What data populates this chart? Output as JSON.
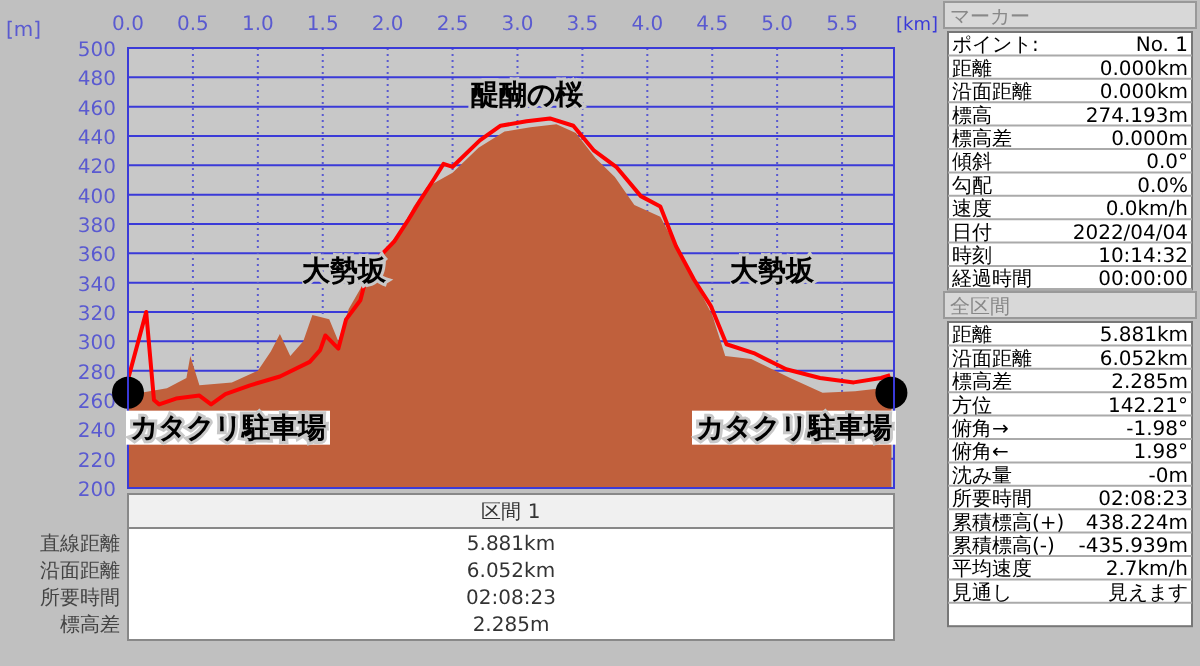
{
  "chart_data": {
    "type": "area",
    "xlabel": "[km]",
    "ylabel": "[m]",
    "xlim": [
      0,
      5.9
    ],
    "xticks": [
      {
        "value": 0,
        "label": "0.0"
      },
      0.5,
      {
        "value": 1,
        "label": "1.0"
      },
      1.5,
      {
        "value": 2,
        "label": "2.0"
      },
      2.5,
      {
        "value": 3,
        "label": "3.0"
      },
      3.5,
      {
        "value": 4,
        "label": "4.0"
      },
      4.5,
      {
        "value": 5,
        "label": "5.0"
      },
      5.5
    ],
    "ylim": [
      200,
      500
    ],
    "yticks": [
      200,
      220,
      240,
      260,
      280,
      300,
      320,
      340,
      360,
      380,
      400,
      420,
      440,
      460,
      480,
      500
    ],
    "grid": true,
    "series": [
      {
        "color": "#c0603c",
        "x": [
          0,
          0.1,
          0.3,
          0.45,
          0.48,
          0.55,
          0.8,
          1.0,
          1.1,
          1.17,
          1.25,
          1.35,
          1.42,
          1.55,
          1.62,
          1.7,
          1.85,
          2.0,
          2.1,
          2.2,
          2.3,
          2.4,
          2.5,
          2.7,
          2.9,
          3.1,
          3.3,
          3.45,
          3.6,
          3.75,
          3.9,
          4.1,
          4.25,
          4.4,
          4.5,
          4.6,
          4.8,
          5.1,
          5.35,
          5.6,
          5.8,
          5.88
        ],
        "values": [
          270,
          265,
          268,
          275,
          290,
          270,
          272,
          280,
          293,
          305,
          290,
          300,
          318,
          315,
          300,
          322,
          345,
          365,
          375,
          392,
          405,
          410,
          415,
          432,
          443,
          446,
          448,
          442,
          425,
          412,
          393,
          385,
          360,
          335,
          318,
          290,
          288,
          275,
          265,
          266,
          268,
          270
        ]
      },
      {
        "type": "line",
        "color": "#ff0000",
        "x": [
          0,
          0.14,
          0.2,
          0.24,
          0.37,
          0.55,
          0.64,
          0.75,
          0.94,
          1.17,
          1.4,
          1.48,
          1.52,
          1.62,
          1.68,
          1.79,
          1.83,
          1.94,
          2.05,
          2.16,
          2.25,
          2.36,
          2.43,
          2.5,
          2.71,
          2.87,
          3.07,
          3.25,
          3.43,
          3.59,
          3.76,
          3.95,
          4.1,
          4.22,
          4.36,
          4.49,
          4.61,
          4.82,
          5.07,
          5.33,
          5.59,
          5.8,
          5.87
        ],
        "values": [
          274,
          320,
          260,
          257,
          261,
          263,
          257,
          264,
          270,
          276,
          286,
          294,
          304,
          295,
          315,
          328,
          342,
          358,
          368,
          383,
          396,
          411,
          421,
          419,
          437,
          447,
          450,
          452,
          447,
          430,
          419,
          399,
          392,
          365,
          342,
          324,
          298,
          292,
          281,
          275,
          272,
          275,
          277
        ]
      },
      {
        "type": "scatter",
        "color": "#000000",
        "x": [
          0,
          5.88
        ],
        "values": [
          265,
          265
        ]
      }
    ],
    "annotations": [
      "醍醐の桜",
      "大勢坂",
      "大勢坂",
      {
        "text": "カタクリ駐車場",
        "x": 0,
        "y": 235
      },
      {
        "text": "カタクリ駐車場",
        "x": 5.88,
        "y": 235
      },
      "区間 1",
      "直線距離",
      "5.881km",
      "沿面距離",
      "6.052km",
      "所要時間",
      "02:08:23",
      "標高差",
      "2.285m",
      "マーカー",
      "ポイント:",
      "No. 1",
      "距離",
      "0.000km",
      "沿面距離",
      "0.000km",
      "標高",
      "274.193m",
      "標高差",
      "0.000m",
      "傾斜",
      "0.0°",
      "勾配",
      "0.0%",
      "速度",
      "0.0km/h",
      "日付",
      "2022/04/04",
      "時刻",
      "10:14:32",
      "経過時間",
      "00:00:00",
      "全区間",
      "距離",
      "5.881km",
      "沿面距離",
      "6.052km",
      "標高差",
      "2.285m",
      "方位",
      "142.21°",
      "俯角→",
      "-1.98°",
      "俯角←",
      "1.98°",
      "沈み量",
      "-0m",
      "所要時間",
      "02:08:23",
      "累積標高(+)",
      "438.224m",
      "累積標高(-)",
      "-435.939m",
      "平均速度",
      "2.7km/h",
      "見通し",
      "見えます"
    ]
  }
}
